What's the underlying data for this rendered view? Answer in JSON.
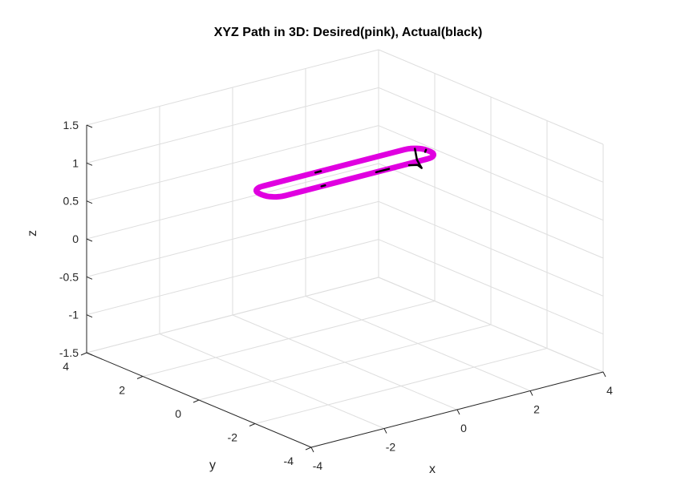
{
  "chart_data": {
    "type": "line3d",
    "title": "XYZ Path in 3D: Desired(pink), Actual(black)",
    "xlabel": "x",
    "ylabel": "y",
    "zlabel": "z",
    "xlim": [
      -4,
      4
    ],
    "ylim": [
      -4,
      4
    ],
    "zlim": [
      -1.5,
      1.5
    ],
    "xticks": [
      -4,
      -2,
      0,
      2,
      4
    ],
    "yticks": [
      -4,
      -2,
      0,
      2,
      4
    ],
    "zticks": [
      -1.5,
      -1,
      -0.5,
      0,
      0.5,
      1,
      1.5
    ],
    "xtick_labels": [
      "-4",
      "-2",
      "0",
      "2",
      "4"
    ],
    "ytick_labels": [
      "-4",
      "-2",
      "0",
      "2",
      "4"
    ],
    "ztick_labels": [
      "-1.5",
      "-1",
      "-0.5",
      "0",
      "0.5",
      "1",
      "1.5"
    ],
    "grid": true,
    "series": [
      {
        "color": "#e000e0",
        "shape": "rounded-rectangle",
        "x_range": [
          -2.3,
          2.3
        ],
        "y_range": [
          -0.4,
          0.4
        ],
        "corner_radius": 0.35,
        "z": 1
      },
      {
        "color": "#000000",
        "segments": [
          [
            [
              1.45,
              -0.4,
              0.98
            ],
            [
              1.7,
              -0.38,
              0.95
            ],
            [
              1.95,
              -0.2,
              0.85
            ],
            [
              2.05,
              0.1,
              0.9
            ],
            [
              2.15,
              0.3,
              1.0
            ]
          ],
          [
            [
              0.55,
              -0.4,
              1.0
            ],
            [
              0.9,
              -0.4,
              1.0
            ]
          ],
          [
            [
              -0.5,
              0.4,
              1.0
            ],
            [
              -0.35,
              0.4,
              1.0
            ]
          ],
          [
            [
              -0.95,
              -0.4,
              1.0
            ],
            [
              -0.85,
              -0.4,
              1.0
            ]
          ],
          [
            [
              2.2,
              0.0,
              1.0
            ],
            [
              2.3,
              0.1,
              1.0
            ]
          ]
        ]
      }
    ]
  }
}
